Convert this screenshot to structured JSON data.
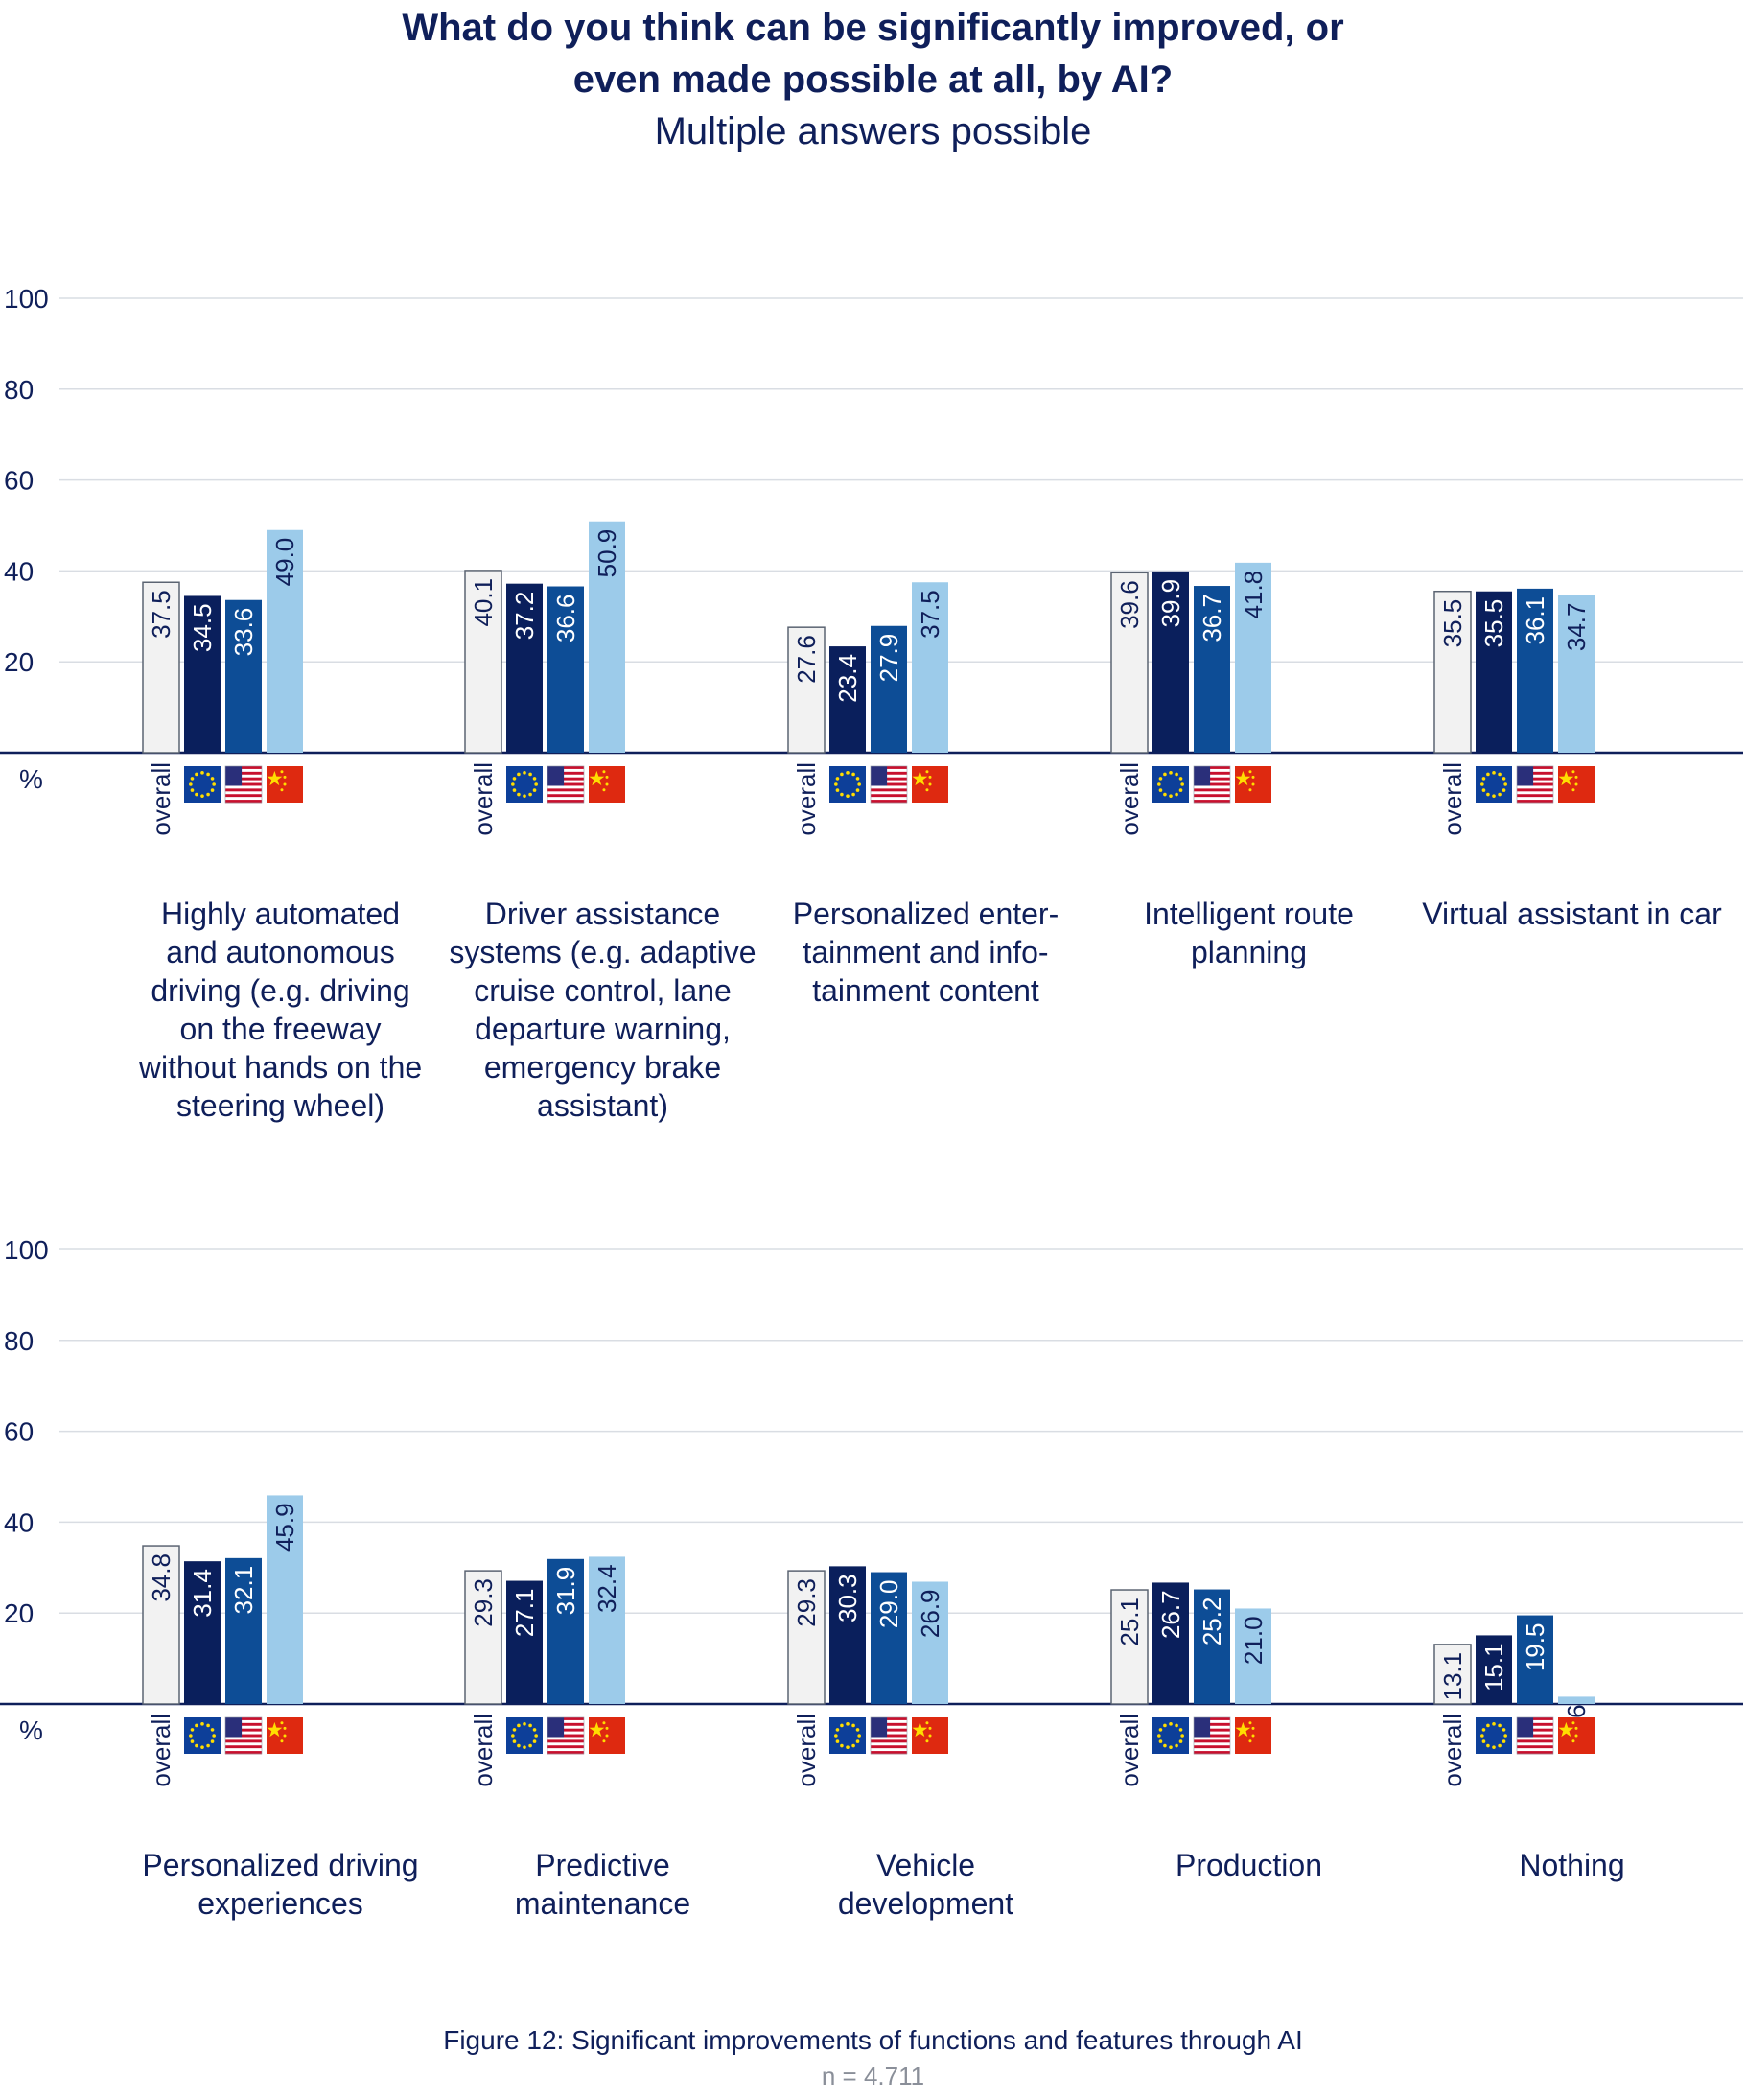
{
  "header": {
    "title_line1": "What do you think can be significantly improved, or",
    "title_line2": "even made possible at all, by AI?",
    "subtitle": "Multiple answers possible"
  },
  "footer": {
    "caption": "Figure 12: Significant improvements of functions and features through AI",
    "sample": "n = 4.711"
  },
  "colors": {
    "overall": "#f2f2f2",
    "eu": "#0a1f5c",
    "us": "#0d4d96",
    "cn": "#9ccbea",
    "axis": "#0f1f5a",
    "grid": "#d9dde3"
  },
  "chart_data": [
    {
      "type": "bar",
      "ylim": [
        0,
        100
      ],
      "yticks": [
        20,
        40,
        60,
        80,
        100
      ],
      "unit_label": "%",
      "group_label": "overall",
      "series": [
        {
          "key": "overall",
          "marker": "overall",
          "values": [
            37.5,
            40.1,
            27.6,
            39.6,
            35.5
          ]
        },
        {
          "key": "eu",
          "marker": "eu-flag-icon",
          "values": [
            34.5,
            37.2,
            23.4,
            39.9,
            35.5
          ]
        },
        {
          "key": "us",
          "marker": "us-flag-icon",
          "values": [
            33.6,
            36.6,
            27.9,
            36.7,
            36.1
          ]
        },
        {
          "key": "cn",
          "marker": "cn-flag-icon",
          "values": [
            49.0,
            50.9,
            37.5,
            41.8,
            34.7
          ]
        }
      ],
      "categories": [
        [
          "Highly automated",
          "and autonomous",
          "driving (e.g. driving",
          "on the freeway",
          "without hands on the",
          "steering wheel)"
        ],
        [
          "Driver assistance",
          "systems (e.g. adaptive",
          "cruise control, lane",
          "departure warning,",
          "emergency brake",
          "assistant)"
        ],
        [
          "Personalized enter-",
          "tainment and info-",
          "tainment content"
        ],
        [
          "Intelligent route",
          "planning"
        ],
        [
          "Virtual assistant in car"
        ]
      ]
    },
    {
      "type": "bar",
      "ylim": [
        0,
        100
      ],
      "yticks": [
        20,
        40,
        60,
        80,
        100
      ],
      "unit_label": "%",
      "group_label": "overall",
      "series": [
        {
          "key": "overall",
          "marker": "overall",
          "values": [
            34.8,
            29.3,
            29.3,
            25.1,
            13.1
          ]
        },
        {
          "key": "eu",
          "marker": "eu-flag-icon",
          "values": [
            31.4,
            27.1,
            30.3,
            26.7,
            15.1
          ]
        },
        {
          "key": "us",
          "marker": "us-flag-icon",
          "values": [
            32.1,
            31.9,
            29.0,
            25.2,
            19.5
          ]
        },
        {
          "key": "cn",
          "marker": "cn-flag-icon",
          "values": [
            45.9,
            32.4,
            26.9,
            21.0,
            1.6
          ]
        }
      ],
      "categories": [
        [
          "Personalized driving",
          "experiences"
        ],
        [
          "Predictive",
          "maintenance"
        ],
        [
          "Vehicle",
          "development"
        ],
        [
          "Production"
        ],
        [
          "Nothing"
        ]
      ]
    }
  ]
}
